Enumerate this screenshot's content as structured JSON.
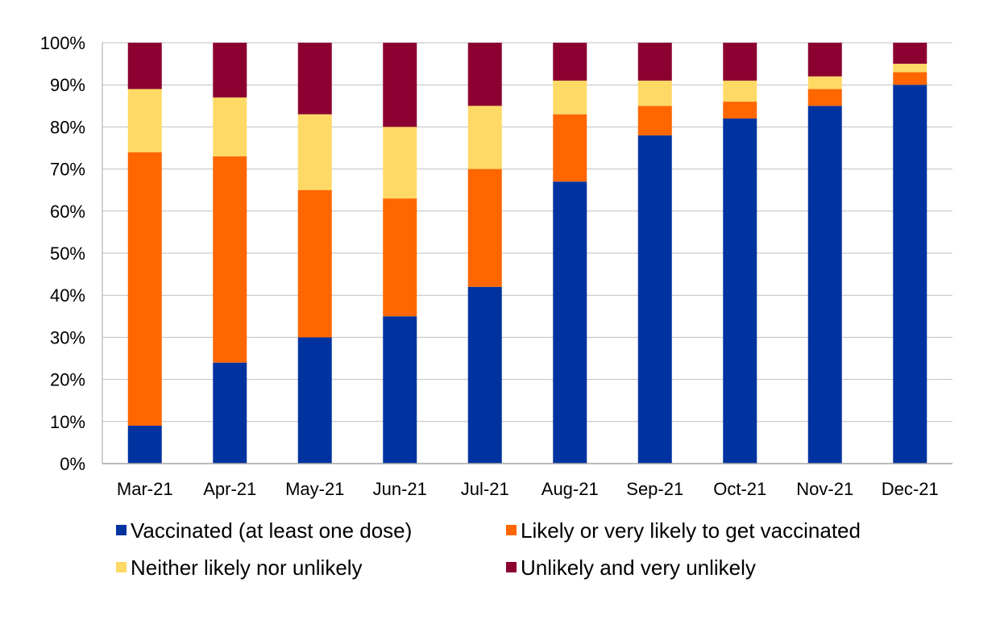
{
  "chart_data": {
    "type": "bar",
    "stacked": true,
    "percent_axis": true,
    "categories": [
      "Mar-21",
      "Apr-21",
      "May-21",
      "Jun-21",
      "Jul-21",
      "Aug-21",
      "Sep-21",
      "Oct-21",
      "Nov-21",
      "Dec-21"
    ],
    "series": [
      {
        "name": "Vaccinated (at least one dose)",
        "color": "#0033A0",
        "values": [
          9,
          24,
          30,
          35,
          42,
          67,
          78,
          82,
          85,
          90
        ]
      },
      {
        "name": "Likely or very likely to get vaccinated",
        "color": "#FF6600",
        "values": [
          65,
          49,
          35,
          28,
          28,
          16,
          7,
          4,
          4,
          3
        ]
      },
      {
        "name": "Neither likely nor unlikely",
        "color": "#FFD966",
        "values": [
          15,
          14,
          18,
          17,
          15,
          8,
          6,
          5,
          3,
          2
        ]
      },
      {
        "name": "Unlikely and very unlikely",
        "color": "#8B0030",
        "values": [
          11,
          13,
          17,
          20,
          15,
          9,
          9,
          9,
          8,
          5
        ]
      }
    ],
    "ylim": [
      0,
      100
    ],
    "y_ticks": [
      "0%",
      "10%",
      "20%",
      "30%",
      "40%",
      "50%",
      "60%",
      "70%",
      "80%",
      "90%",
      "100%"
    ],
    "grid": true,
    "legend_position": "bottom",
    "title": "",
    "xlabel": "",
    "ylabel": ""
  }
}
